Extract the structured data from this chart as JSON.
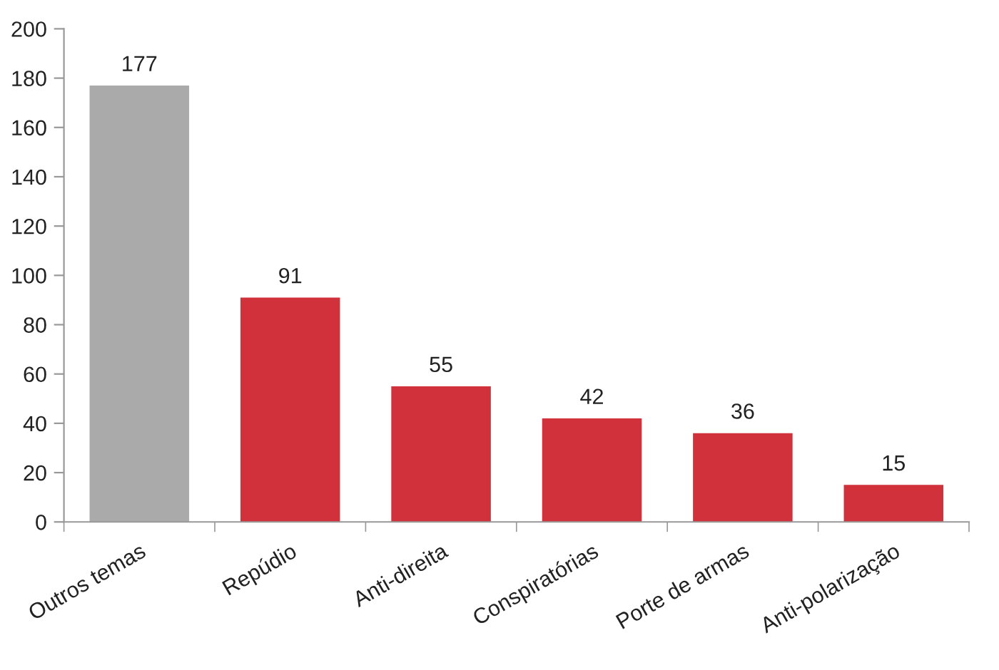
{
  "chart_data": {
    "type": "bar",
    "categories": [
      "Outros temas",
      "Repúdio",
      "Anti-direita",
      "Conspiratórias",
      "Porte de armas",
      "Anti-polarização"
    ],
    "values": [
      177,
      91,
      55,
      42,
      36,
      15
    ],
    "colors": [
      "#aaaaaa",
      "#d1313b",
      "#d1313b",
      "#d1313b",
      "#d1313b",
      "#d1313b"
    ],
    "ylim": [
      0,
      200
    ],
    "yticks": [
      0,
      20,
      40,
      60,
      80,
      100,
      120,
      140,
      160,
      180,
      200
    ],
    "data_labels": true,
    "grid": false,
    "legend": false
  }
}
